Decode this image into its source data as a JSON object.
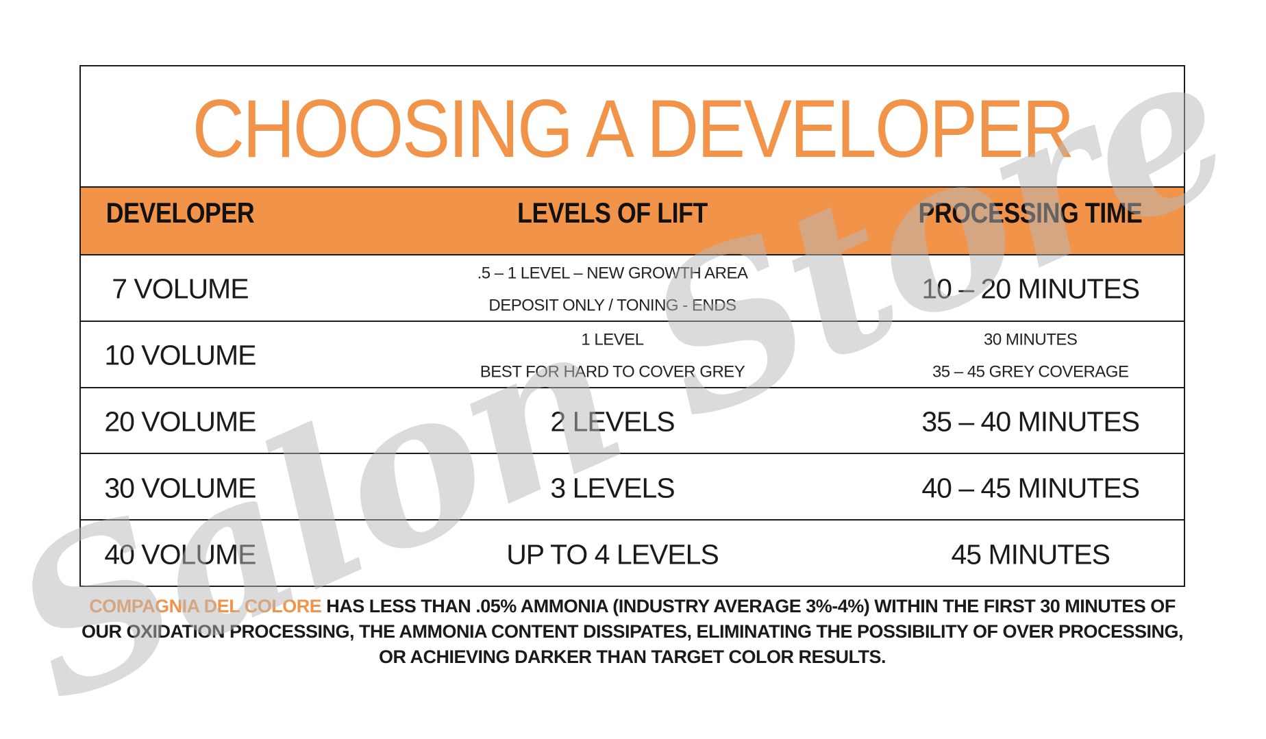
{
  "colors": {
    "accent_orange": "#F1944A",
    "text_black": "#1a1a1a",
    "border_black": "#1a1a1a",
    "watermark_gray": "#b8b8b8"
  },
  "title": "CHOOSING A DEVELOPER",
  "watermark_text": "Salon Store",
  "table": {
    "headers": [
      "DEVELOPER",
      "LEVELS OF LIFT",
      "PROCESSING TIME"
    ],
    "rows": [
      {
        "developer": "7 VOLUME",
        "lift": [
          ".5 – 1 LEVEL – NEW GROWTH AREA",
          "DEPOSIT ONLY / TONING - ENDS"
        ],
        "time": [
          "10 – 20 MINUTES"
        ]
      },
      {
        "developer": "10 VOLUME",
        "lift": [
          "1 LEVEL",
          "BEST FOR HARD TO COVER GREY"
        ],
        "time": [
          "30 MINUTES",
          "35 – 45 GREY COVERAGE"
        ]
      },
      {
        "developer": "20 VOLUME",
        "lift": [
          "2 LEVELS"
        ],
        "time": [
          "35 – 40 MINUTES"
        ]
      },
      {
        "developer": "30 VOLUME",
        "lift": [
          "3 LEVELS"
        ],
        "time": [
          "40 – 45 MINUTES"
        ]
      },
      {
        "developer": "40 VOLUME",
        "lift": [
          "UP TO 4 LEVELS"
        ],
        "time": [
          "45 MINUTES"
        ]
      }
    ]
  },
  "footer": {
    "brand": "COMPAGNIA DEL COLORE",
    "line1_rest": " HAS LESS THAN .05% AMMONIA (INDUSTRY AVERAGE 3%-4%) WITHIN THE FIRST 30 MINUTES OF",
    "line2": "OUR OXIDATION PROCESSING, THE AMMONIA CONTENT DISSIPATES, ELIMINATING THE POSSIBILITY OF OVER PROCESSING,",
    "line3": "OR ACHIEVING DARKER THAN TARGET COLOR RESULTS."
  }
}
